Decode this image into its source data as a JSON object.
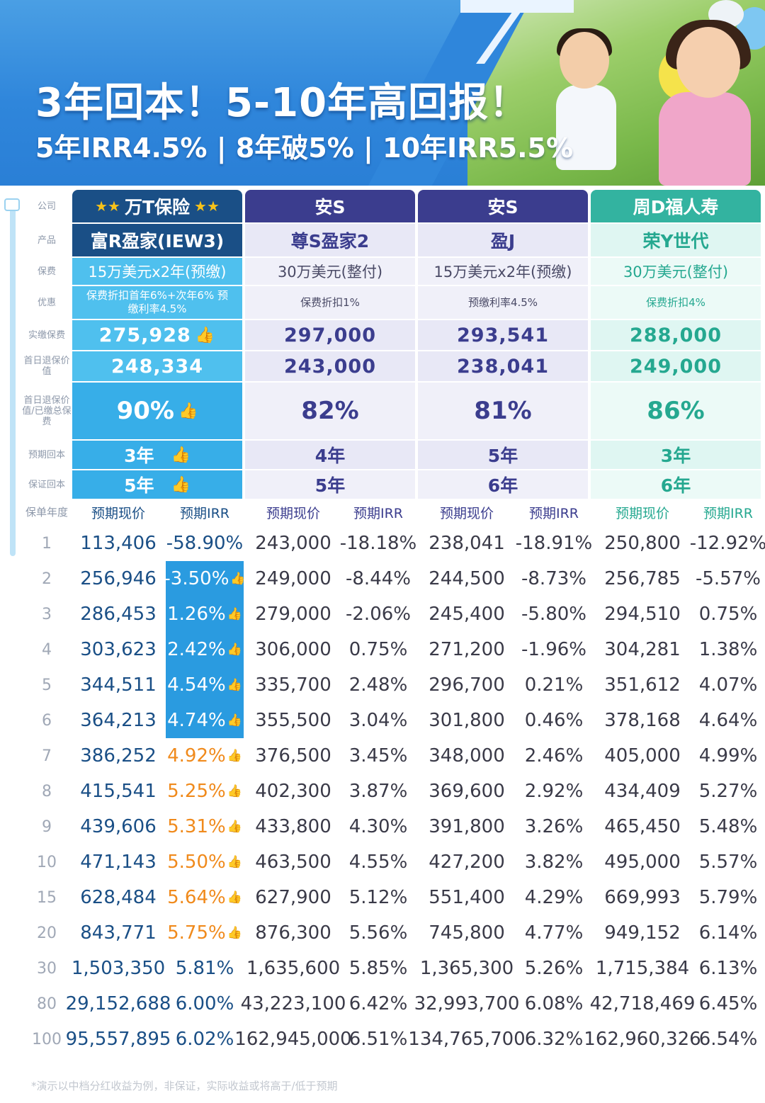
{
  "banner": {
    "title": "3年回本！5-10年高回报！",
    "subtitle": "5年IRR4.5% | 8年破5% | 10年IRR5.5%"
  },
  "labels": {
    "company": "公司",
    "product": "产品",
    "premium": "保费",
    "offer": "优惠",
    "paid": "实缴保费",
    "day1_value": "首日退保价值",
    "day1_ratio": "首日退保价值/已缴总保费",
    "expected_breakeven": "预期回本",
    "guaranteed_breakeven": "保证回本",
    "policy_year": "保单年度"
  },
  "plans": [
    {
      "company": "万T保险",
      "product": "富R盈家(IEW3)",
      "premium": "15万美元x2年(预缴)",
      "offer": "保费折扣首年6%+次年6% 预缴利率4.5%",
      "paid": "275,928",
      "day1_value": "248,334",
      "day1_ratio": "90%",
      "expected_breakeven": "3年",
      "guaranteed_breakeven": "5年",
      "cv_header": "预期现价",
      "irr_header": "预期IRR"
    },
    {
      "company": "安S",
      "product": "尊S盈家2",
      "premium": "30万美元(整付)",
      "offer": "保费折扣1%",
      "paid": "297,000",
      "day1_value": "243,000",
      "day1_ratio": "82%",
      "expected_breakeven": "4年",
      "guaranteed_breakeven": "5年",
      "cv_header": "预期现价",
      "irr_header": "预期IRR"
    },
    {
      "company": "安S",
      "product": "盈J",
      "premium": "15万美元x2年(预缴)",
      "offer": "预缴利率4.5%",
      "paid": "293,541",
      "day1_value": "238,041",
      "day1_ratio": "81%",
      "expected_breakeven": "5年",
      "guaranteed_breakeven": "6年",
      "cv_header": "预期现价",
      "irr_header": "预期IRR"
    },
    {
      "company": "周D福人寿",
      "product": "荣Y世代",
      "premium": "30万美元(整付)",
      "offer": "保费折扣4%",
      "paid": "288,000",
      "day1_value": "249,000",
      "day1_ratio": "86%",
      "expected_breakeven": "3年",
      "guaranteed_breakeven": "6年",
      "cv_header": "预期现价",
      "irr_header": "预期IRR"
    }
  ],
  "rows": [
    {
      "year": "1",
      "cv1": "113,406",
      "irr1": "-58.90%",
      "cv2": "243,000",
      "irr2": "-18.18%",
      "cv3": "238,041",
      "irr3": "-18.91%",
      "cv4": "250,800",
      "irr4": "-12.92%"
    },
    {
      "year": "2",
      "cv1": "256,946",
      "irr1": "-3.50%",
      "cv2": "249,000",
      "irr2": "-8.44%",
      "cv3": "244,500",
      "irr3": "-8.73%",
      "cv4": "256,785",
      "irr4": "-5.57%"
    },
    {
      "year": "3",
      "cv1": "286,453",
      "irr1": "1.26%",
      "cv2": "279,000",
      "irr2": "-2.06%",
      "cv3": "245,400",
      "irr3": "-5.80%",
      "cv4": "294,510",
      "irr4": "0.75%"
    },
    {
      "year": "4",
      "cv1": "303,623",
      "irr1": "2.42%",
      "cv2": "306,000",
      "irr2": "0.75%",
      "cv3": "271,200",
      "irr3": "-1.96%",
      "cv4": "304,281",
      "irr4": "1.38%"
    },
    {
      "year": "5",
      "cv1": "344,511",
      "irr1": "4.54%",
      "cv2": "335,700",
      "irr2": "2.48%",
      "cv3": "296,700",
      "irr3": "0.21%",
      "cv4": "351,612",
      "irr4": "4.07%"
    },
    {
      "year": "6",
      "cv1": "364,213",
      "irr1": "4.74%",
      "cv2": "355,500",
      "irr2": "3.04%",
      "cv3": "301,800",
      "irr3": "0.46%",
      "cv4": "378,168",
      "irr4": "4.64%"
    },
    {
      "year": "7",
      "cv1": "386,252",
      "irr1": "4.92%",
      "cv2": "376,500",
      "irr2": "3.45%",
      "cv3": "348,000",
      "irr3": "2.46%",
      "cv4": "405,000",
      "irr4": "4.99%"
    },
    {
      "year": "8",
      "cv1": "415,541",
      "irr1": "5.25%",
      "cv2": "402,300",
      "irr2": "3.87%",
      "cv3": "369,600",
      "irr3": "2.92%",
      "cv4": "434,409",
      "irr4": "5.27%"
    },
    {
      "year": "9",
      "cv1": "439,606",
      "irr1": "5.31%",
      "cv2": "433,800",
      "irr2": "4.30%",
      "cv3": "391,800",
      "irr3": "3.26%",
      "cv4": "465,450",
      "irr4": "5.48%"
    },
    {
      "year": "10",
      "cv1": "471,143",
      "irr1": "5.50%",
      "cv2": "463,500",
      "irr2": "4.55%",
      "cv3": "427,200",
      "irr3": "3.82%",
      "cv4": "495,000",
      "irr4": "5.57%"
    },
    {
      "year": "15",
      "cv1": "628,484",
      "irr1": "5.64%",
      "cv2": "627,900",
      "irr2": "5.12%",
      "cv3": "551,400",
      "irr3": "4.29%",
      "cv4": "669,993",
      "irr4": "5.79%"
    },
    {
      "year": "20",
      "cv1": "843,771",
      "irr1": "5.75%",
      "cv2": "876,300",
      "irr2": "5.56%",
      "cv3": "745,800",
      "irr3": "4.77%",
      "cv4": "949,152",
      "irr4": "6.14%"
    },
    {
      "year": "30",
      "cv1": "1,503,350",
      "irr1": "5.81%",
      "cv2": "1,635,600",
      "irr2": "5.85%",
      "cv3": "1,365,300",
      "irr3": "5.26%",
      "cv4": "1,715,384",
      "irr4": "6.13%"
    },
    {
      "year": "80",
      "cv1": "29,152,688",
      "irr1": "6.00%",
      "cv2": "43,223,100",
      "irr2": "6.42%",
      "cv3": "32,993,700",
      "irr3": "6.08%",
      "cv4": "42,718,469",
      "irr4": "6.45%"
    },
    {
      "year": "100",
      "cv1": "95,557,895",
      "irr1": "6.02%",
      "cv2": "162,945,000",
      "irr2": "6.51%",
      "cv3": "134,765,700",
      "irr3": "6.32%",
      "cv4": "162,960,326",
      "irr4": "6.54%"
    }
  ],
  "icons": {
    "star": "★★",
    "thumb": "👍"
  },
  "colors": {
    "brand_blue": "#1a4f86",
    "purple": "#3b3d8e",
    "teal": "#33b3a0",
    "highlight_orange": "#f08a1c"
  },
  "footnote": "*演示以中档分红收益为例，非保证，实际收益或将高于/低于预期"
}
